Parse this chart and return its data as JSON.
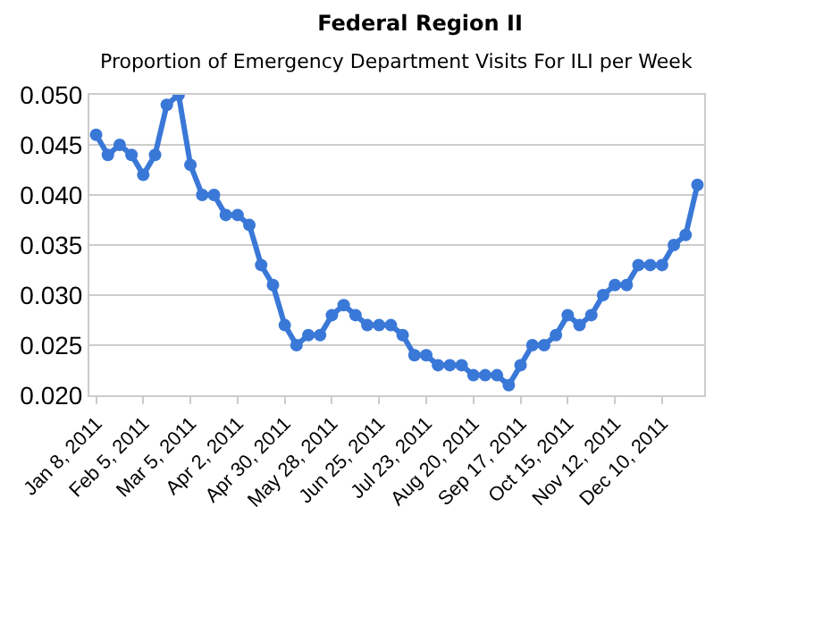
{
  "chart_data": {
    "type": "line",
    "title": "Federal Region II",
    "subtitle": "Proportion of Emergency Department Visits For ILI per Week",
    "x": [
      "2011-01-08",
      "2011-01-15",
      "2011-01-22",
      "2011-01-29",
      "2011-02-05",
      "2011-02-12",
      "2011-02-19",
      "2011-02-26",
      "2011-03-05",
      "2011-03-12",
      "2011-03-19",
      "2011-03-26",
      "2011-04-02",
      "2011-04-09",
      "2011-04-16",
      "2011-04-23",
      "2011-04-30",
      "2011-05-07",
      "2011-05-14",
      "2011-05-21",
      "2011-05-28",
      "2011-06-04",
      "2011-06-11",
      "2011-06-18",
      "2011-06-25",
      "2011-07-02",
      "2011-07-09",
      "2011-07-16",
      "2011-07-23",
      "2011-07-30",
      "2011-08-06",
      "2011-08-13",
      "2011-08-20",
      "2011-08-27",
      "2011-09-03",
      "2011-09-10",
      "2011-09-17",
      "2011-09-24",
      "2011-10-01",
      "2011-10-08",
      "2011-10-15",
      "2011-10-22",
      "2011-10-29",
      "2011-11-05",
      "2011-11-12",
      "2011-11-19",
      "2011-11-26",
      "2011-12-03",
      "2011-12-10",
      "2011-12-17",
      "2011-12-24",
      "2011-12-31"
    ],
    "series": [
      {
        "color": "#3a78d8",
        "values": [
          0.046,
          0.044,
          0.045,
          0.044,
          0.042,
          0.044,
          0.049,
          0.05,
          0.043,
          0.04,
          0.04,
          0.038,
          0.038,
          0.037,
          0.033,
          0.031,
          0.027,
          0.025,
          0.026,
          0.026,
          0.028,
          0.029,
          0.028,
          0.027,
          0.027,
          0.027,
          0.026,
          0.024,
          0.024,
          0.023,
          0.023,
          0.023,
          0.022,
          0.022,
          0.022,
          0.021,
          0.023,
          0.025,
          0.025,
          0.026,
          0.028,
          0.027,
          0.028,
          0.03,
          0.031,
          0.031,
          0.033,
          0.033,
          0.033,
          0.035,
          0.036,
          0.041
        ]
      }
    ],
    "xlim": [
      "2011-01-04",
      "2012-01-04"
    ],
    "xticks": [
      {
        "value": "2011-01-08",
        "label": "Jan 8, 2011"
      },
      {
        "value": "2011-02-05",
        "label": "Feb 5, 2011"
      },
      {
        "value": "2011-03-05",
        "label": "Mar 5, 2011"
      },
      {
        "value": "2011-04-02",
        "label": "Apr 2, 2011"
      },
      {
        "value": "2011-04-30",
        "label": "Apr 30, 2011"
      },
      {
        "value": "2011-05-28",
        "label": "May 28, 2011"
      },
      {
        "value": "2011-06-25",
        "label": "Jun 25, 2011"
      },
      {
        "value": "2011-07-23",
        "label": "Jul 23, 2011"
      },
      {
        "value": "2011-08-20",
        "label": "Aug 20, 2011"
      },
      {
        "value": "2011-09-17",
        "label": "Sep 17, 2011"
      },
      {
        "value": "2011-10-15",
        "label": "Oct 15, 2011"
      },
      {
        "value": "2011-11-12",
        "label": "Nov 12, 2011"
      },
      {
        "value": "2011-12-10",
        "label": "Dec 10, 2011"
      }
    ],
    "ylim": [
      0.02,
      0.05
    ],
    "yticks": [
      {
        "value": 0.02,
        "label": "0.020"
      },
      {
        "value": 0.025,
        "label": "0.025"
      },
      {
        "value": 0.03,
        "label": "0.030"
      },
      {
        "value": 0.035,
        "label": "0.035"
      },
      {
        "value": 0.04,
        "label": "0.040"
      },
      {
        "value": 0.045,
        "label": "0.045"
      },
      {
        "value": 0.05,
        "label": "0.050"
      }
    ],
    "grid": "y",
    "marker": "circle",
    "line_style": "solid"
  }
}
